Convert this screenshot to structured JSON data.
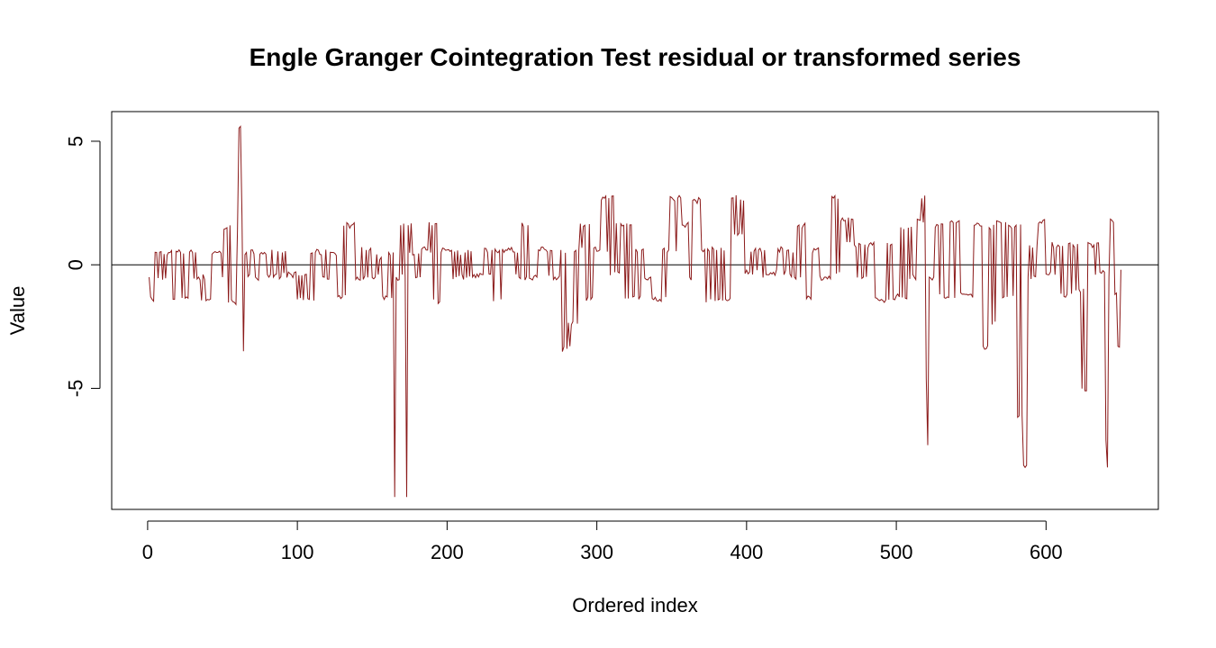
{
  "chart_data": {
    "type": "line",
    "title": "Engle Granger Cointegration Test residual or transformed series",
    "xlabel": "Ordered index",
    "ylabel": "Value",
    "xlim": [
      -24,
      675
    ],
    "ylim": [
      -9.9,
      6.2
    ],
    "x_ticks": [
      0,
      100,
      200,
      300,
      400,
      500,
      600
    ],
    "x_tick_labels": [
      "0",
      "100",
      "200",
      "300",
      "400",
      "500",
      "600"
    ],
    "y_ticks": [
      -5,
      0,
      5
    ],
    "y_tick_labels": [
      "-5",
      "0",
      "5"
    ],
    "reference_line_y": 0,
    "grid": false,
    "legend": "none",
    "series_color": "#8b1a1a",
    "n_points": 650,
    "anchor_points": [
      [
        1,
        -0.5
      ],
      [
        3,
        -1.4
      ],
      [
        6,
        0.5
      ],
      [
        10,
        -0.6
      ],
      [
        14,
        0.5
      ],
      [
        18,
        -1.4
      ],
      [
        22,
        0.5
      ],
      [
        26,
        -1.3
      ],
      [
        30,
        0.5
      ],
      [
        34,
        -0.5
      ],
      [
        40,
        -1.4
      ],
      [
        46,
        0.5
      ],
      [
        50,
        -0.5
      ],
      [
        53,
        1.5
      ],
      [
        57,
        -1.5
      ],
      [
        60,
        1.4
      ],
      [
        62,
        5.6
      ],
      [
        63,
        2.0
      ],
      [
        64,
        -3.5
      ],
      [
        66,
        0.5
      ],
      [
        72,
        -0.5
      ],
      [
        78,
        0.5
      ],
      [
        84,
        -0.5
      ],
      [
        90,
        0.5
      ],
      [
        96,
        -0.4
      ],
      [
        100,
        -1.4
      ],
      [
        105,
        -0.4
      ],
      [
        108,
        -1.4
      ],
      [
        112,
        0.5
      ],
      [
        118,
        -0.5
      ],
      [
        124,
        0.5
      ],
      [
        130,
        -1.3
      ],
      [
        136,
        1.6
      ],
      [
        140,
        -0.5
      ],
      [
        146,
        0.6
      ],
      [
        152,
        -0.5
      ],
      [
        156,
        0.3
      ],
      [
        160,
        -1.3
      ],
      [
        164,
        0.5
      ],
      [
        165,
        -9.4
      ],
      [
        166,
        -0.5
      ],
      [
        169,
        1.6
      ],
      [
        172,
        -0.5
      ],
      [
        173,
        -9.4
      ],
      [
        174,
        1.6
      ],
      [
        177,
        0.4
      ],
      [
        182,
        -0.5
      ],
      [
        186,
        0.6
      ],
      [
        190,
        1.6
      ],
      [
        195,
        -1.5
      ],
      [
        200,
        0.6
      ],
      [
        206,
        -0.5
      ],
      [
        212,
        0.5
      ],
      [
        218,
        -0.4
      ],
      [
        224,
        -0.4
      ],
      [
        230,
        0.6
      ],
      [
        236,
        -1.4
      ],
      [
        242,
        0.6
      ],
      [
        248,
        -0.5
      ],
      [
        254,
        1.6
      ],
      [
        260,
        -0.5
      ],
      [
        266,
        0.6
      ],
      [
        272,
        -0.5
      ],
      [
        276,
        0.6
      ],
      [
        280,
        -3.4
      ],
      [
        284,
        -2.3
      ],
      [
        288,
        0.6
      ],
      [
        292,
        1.6
      ],
      [
        296,
        -1.4
      ],
      [
        302,
        0.6
      ],
      [
        308,
        2.7
      ],
      [
        312,
        -0.3
      ],
      [
        318,
        1.6
      ],
      [
        324,
        -1.3
      ],
      [
        330,
        0.6
      ],
      [
        336,
        -0.5
      ],
      [
        342,
        -1.4
      ],
      [
        348,
        0.6
      ],
      [
        354,
        2.7
      ],
      [
        358,
        1.6
      ],
      [
        362,
        -0.5
      ],
      [
        366,
        2.6
      ],
      [
        370,
        0.6
      ],
      [
        376,
        -1.4
      ],
      [
        380,
        0.6
      ],
      [
        386,
        -1.4
      ],
      [
        390,
        2.7
      ],
      [
        394,
        1.2
      ],
      [
        398,
        2.6
      ],
      [
        402,
        -0.3
      ],
      [
        408,
        0.6
      ],
      [
        414,
        -0.4
      ],
      [
        420,
        -0.2
      ],
      [
        428,
        0.6
      ],
      [
        432,
        -0.5
      ],
      [
        438,
        1.6
      ],
      [
        442,
        -1.3
      ],
      [
        446,
        0.6
      ],
      [
        452,
        -0.5
      ],
      [
        458,
        2.7
      ],
      [
        462,
        -0.3
      ],
      [
        466,
        1.8
      ],
      [
        472,
        0.8
      ],
      [
        478,
        -0.5
      ],
      [
        484,
        0.8
      ],
      [
        490,
        -1.4
      ],
      [
        496,
        0.8
      ],
      [
        502,
        -1.3
      ],
      [
        508,
        1.5
      ],
      [
        512,
        -0.5
      ],
      [
        516,
        1.8
      ],
      [
        519,
        2.8
      ],
      [
        520,
        -4.6
      ],
      [
        521,
        -7.3
      ],
      [
        522,
        -0.5
      ],
      [
        528,
        1.6
      ],
      [
        534,
        -1.3
      ],
      [
        540,
        1.7
      ],
      [
        546,
        -1.2
      ],
      [
        552,
        1.6
      ],
      [
        558,
        -3.3
      ],
      [
        562,
        1.5
      ],
      [
        566,
        -2.3
      ],
      [
        570,
        1.7
      ],
      [
        574,
        -1.3
      ],
      [
        580,
        1.6
      ],
      [
        584,
        -6.1
      ],
      [
        586,
        -8.2
      ],
      [
        588,
        -0.5
      ],
      [
        594,
        0.8
      ],
      [
        598,
        1.8
      ],
      [
        602,
        -0.4
      ],
      [
        608,
        0.8
      ],
      [
        614,
        -1.2
      ],
      [
        618,
        0.8
      ],
      [
        622,
        -1.0
      ],
      [
        626,
        -5.1
      ],
      [
        628,
        0.9
      ],
      [
        632,
        0.8
      ],
      [
        636,
        -0.3
      ],
      [
        640,
        -7.1
      ],
      [
        641,
        -8.2
      ],
      [
        642,
        -0.5
      ],
      [
        644,
        1.8
      ],
      [
        646,
        -1.2
      ],
      [
        648,
        -3.3
      ],
      [
        650,
        -0.2
      ]
    ]
  }
}
